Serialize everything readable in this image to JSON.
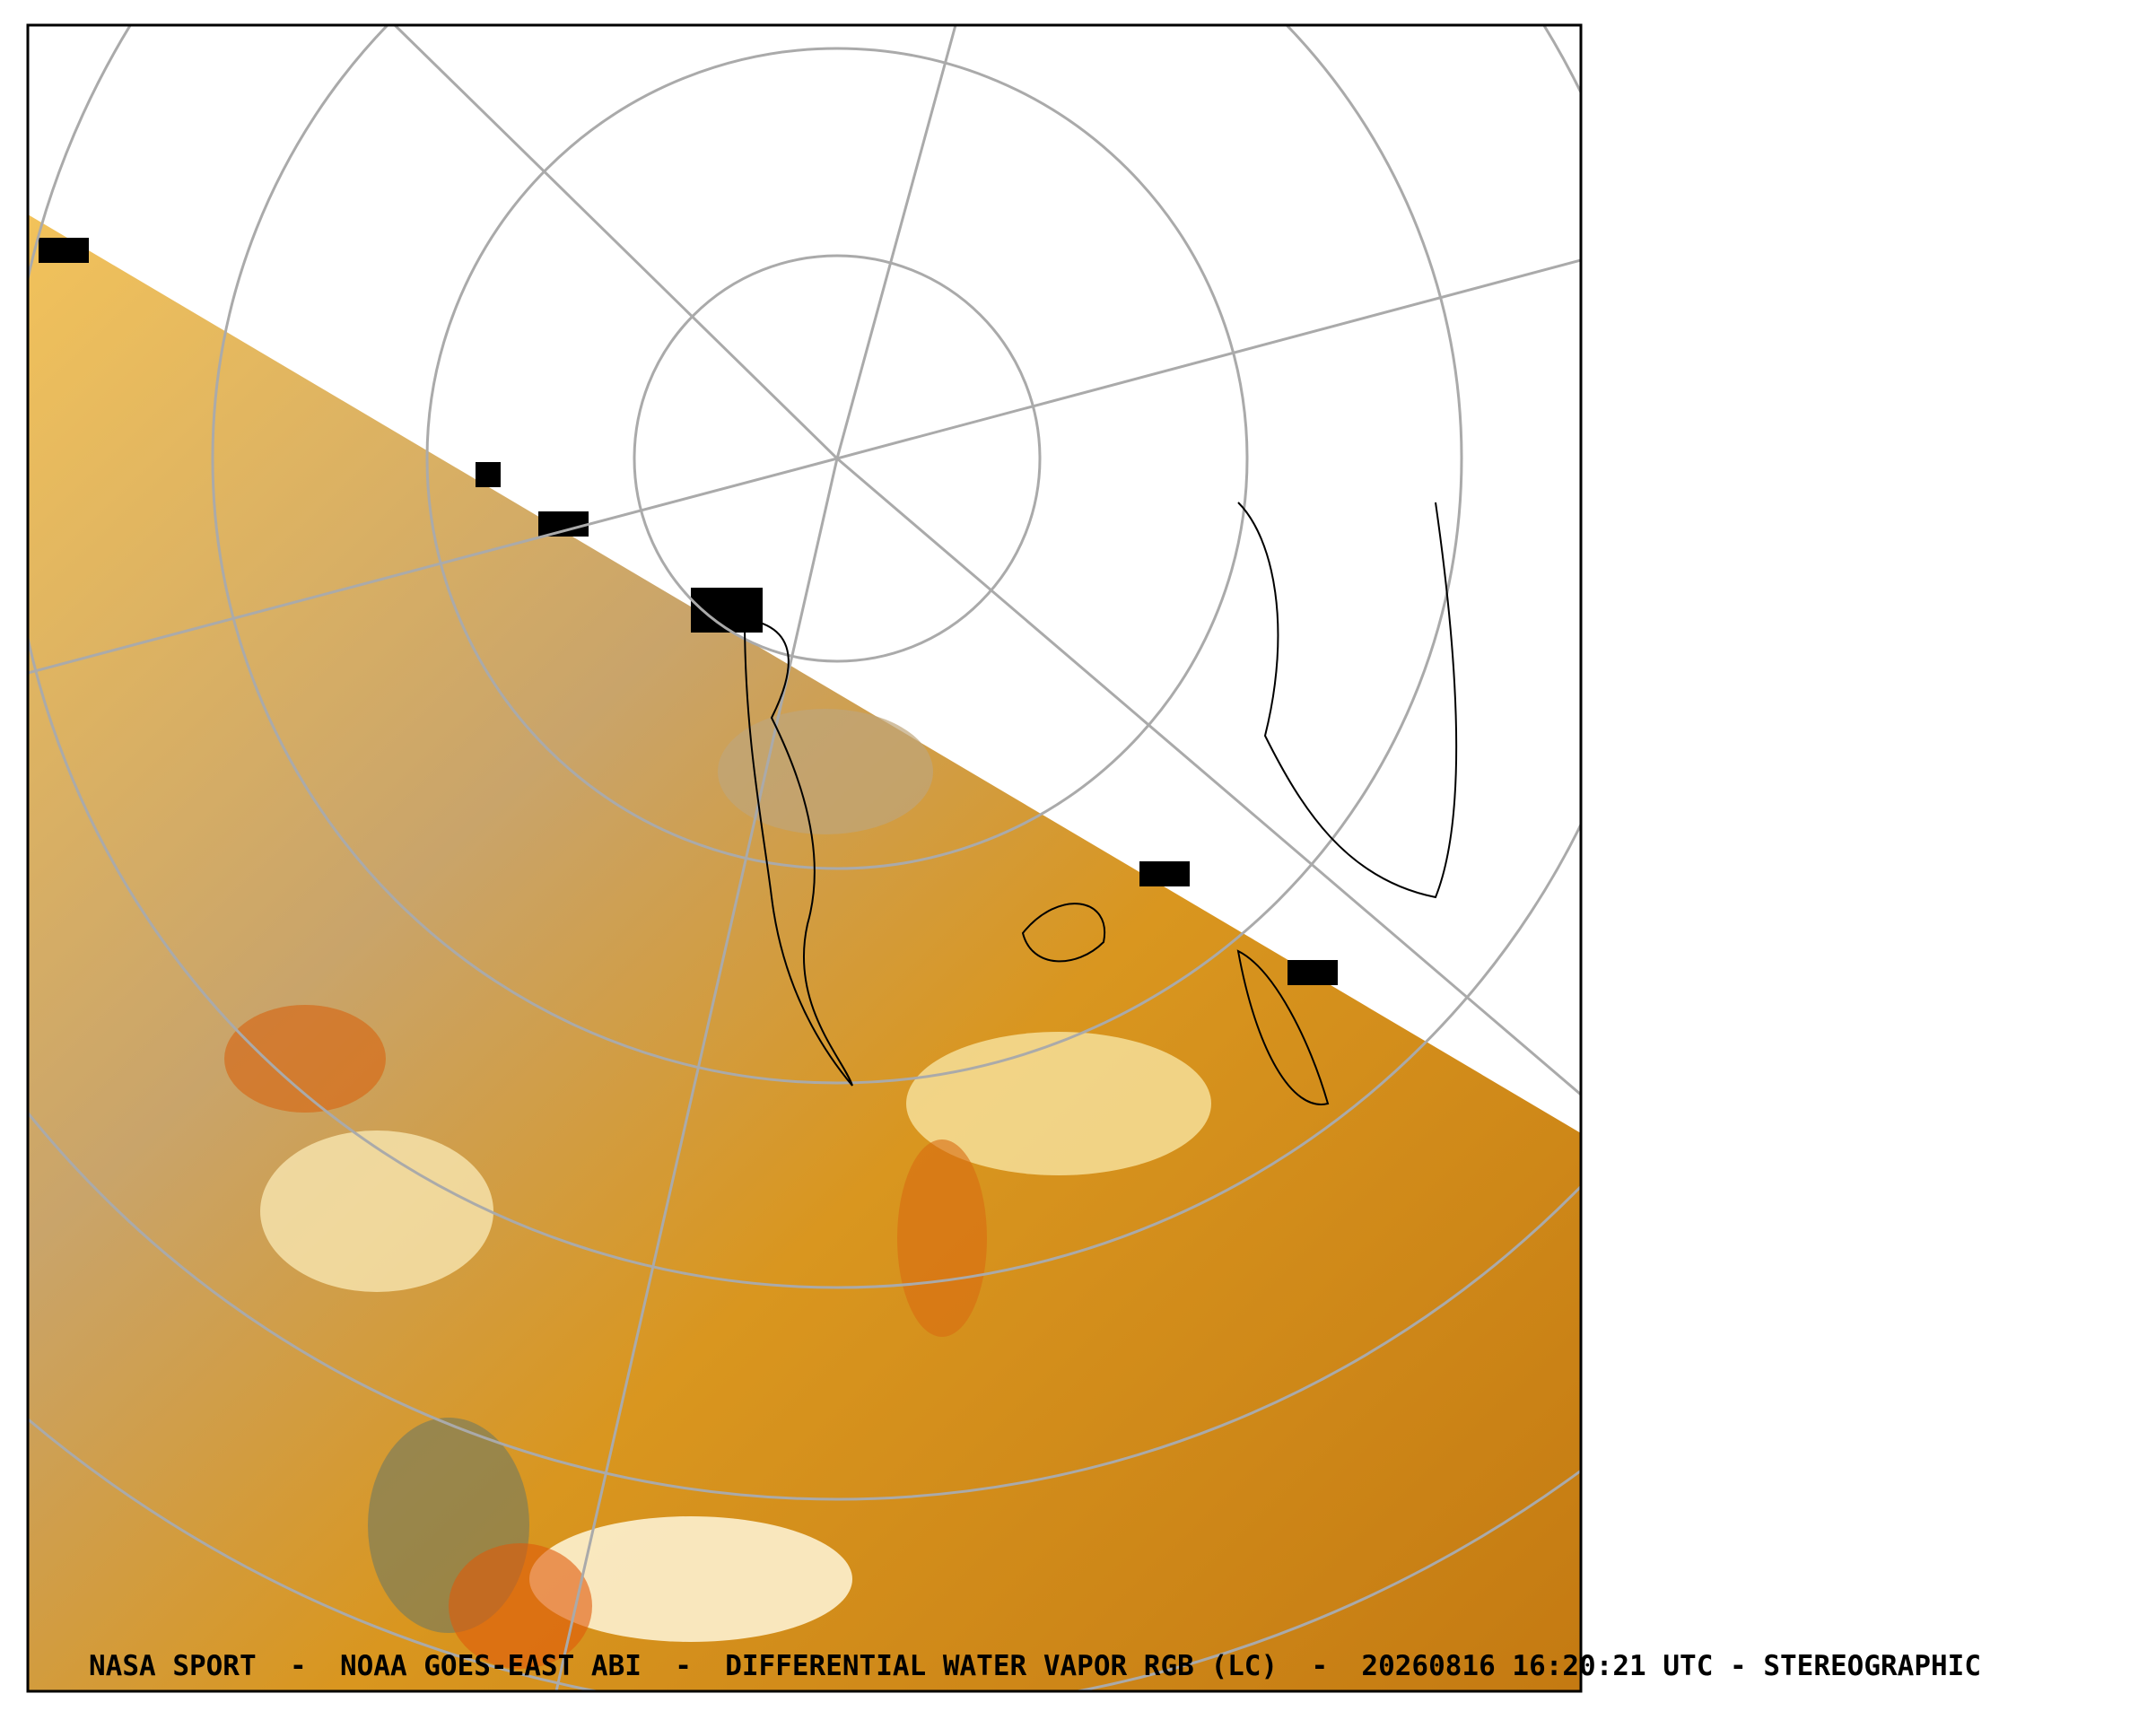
{
  "caption": "NASA SPORT  -  NOAA GOES-EAST ABI  -  DIFFERENTIAL WATER VAPOR RGB (LC)  -  20260816 16:20:21 UTC - STEREOGRAPHIC"
}
